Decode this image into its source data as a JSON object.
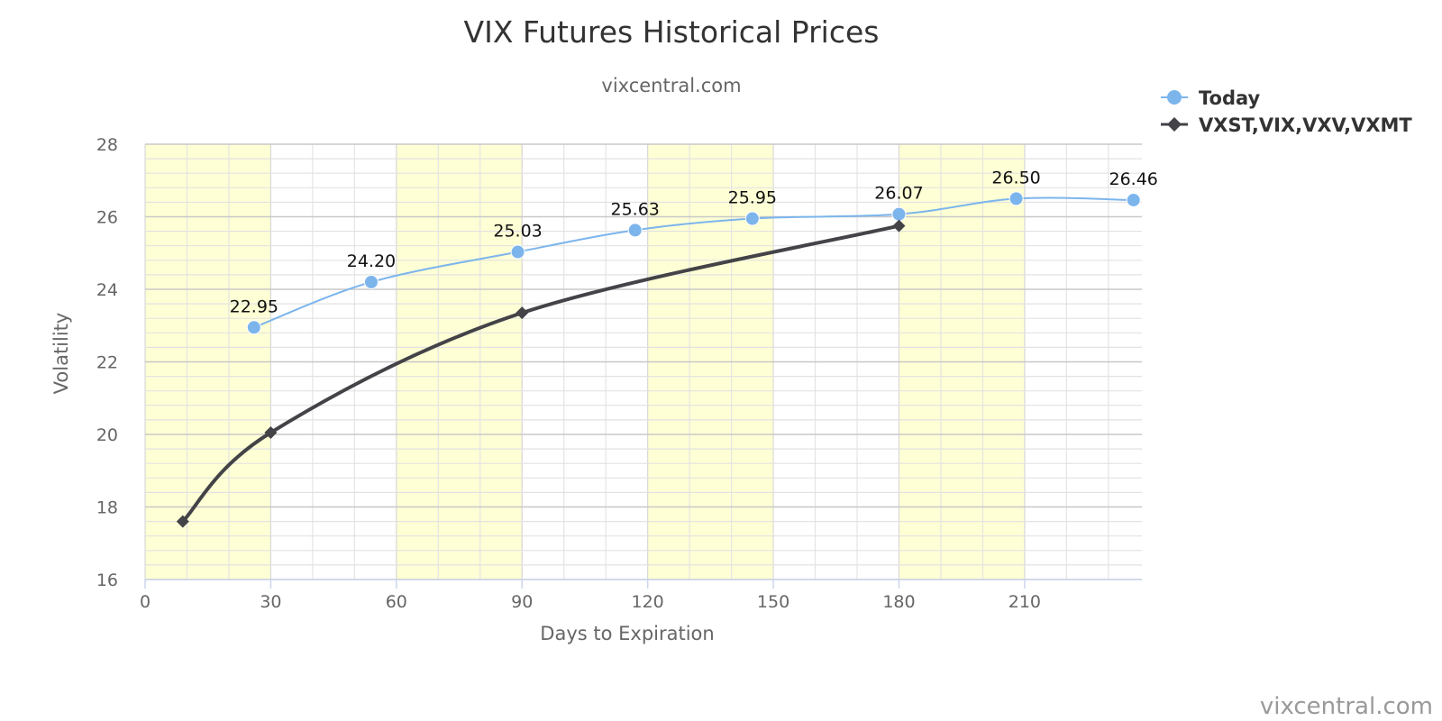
{
  "chart_data": {
    "type": "line",
    "title": "VIX Futures Historical Prices",
    "subtitle": "vixcentral.com",
    "xlabel": "Days to Expiration",
    "ylabel": "Volatility",
    "xlim": [
      0,
      238
    ],
    "ylim": [
      16,
      28
    ],
    "x_ticks": [
      "0",
      "30",
      "60",
      "90",
      "120",
      "150",
      "180",
      "210"
    ],
    "y_ticks": [
      "16",
      "18",
      "20",
      "22",
      "24",
      "26",
      "28"
    ],
    "grid": true,
    "highlight_bands": [
      [
        0,
        30
      ],
      [
        60,
        90
      ],
      [
        120,
        150
      ],
      [
        180,
        210
      ]
    ],
    "legend_position": "top-right",
    "series": [
      {
        "name": "Today",
        "color": "#7cb5ec",
        "marker": "circle",
        "points": [
          {
            "x": 26,
            "y": 22.95,
            "label": "22.95"
          },
          {
            "x": 54,
            "y": 24.2,
            "label": "24.20"
          },
          {
            "x": 89,
            "y": 25.03,
            "label": "25.03"
          },
          {
            "x": 117,
            "y": 25.63,
            "label": "25.63"
          },
          {
            "x": 145,
            "y": 25.95,
            "label": "25.95"
          },
          {
            "x": 180,
            "y": 26.07,
            "label": "26.07"
          },
          {
            "x": 208,
            "y": 26.5,
            "label": "26.50"
          },
          {
            "x": 236,
            "y": 26.46,
            "label": "26.46"
          }
        ]
      },
      {
        "name": "VXST,VIX,VXV,VXMT",
        "color": "#434348",
        "marker": "diamond",
        "points": [
          {
            "x": 9,
            "y": 17.6
          },
          {
            "x": 30,
            "y": 20.05
          },
          {
            "x": 90,
            "y": 23.35
          },
          {
            "x": 180,
            "y": 25.75
          }
        ]
      }
    ]
  },
  "credit": "vixcentral.com"
}
